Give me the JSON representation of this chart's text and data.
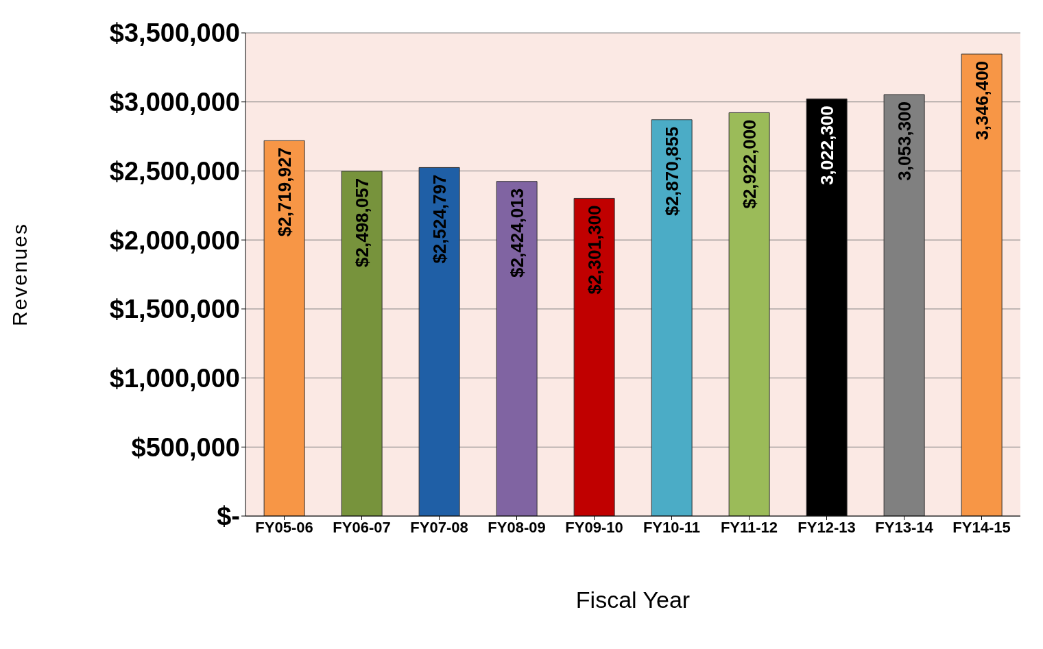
{
  "chart_data": {
    "type": "bar",
    "xlabel": "Fiscal Year",
    "ylabel": "Revenues",
    "categories": [
      "FY05-06",
      "FY06-07",
      "FY07-08",
      "FY08-09",
      "FY09-10",
      "FY10-11",
      "FY11-12",
      "FY12-13",
      "FY13-14",
      "FY14-15"
    ],
    "values": [
      2719927,
      2498057,
      2524797,
      2424013,
      2301300,
      2870855,
      2922000,
      3022300,
      3053300,
      3346400
    ],
    "value_labels": [
      "$2,719,927",
      "$2,498,057",
      "$2,524,797",
      "$2,424,013",
      "$2,301,300",
      "$2,870,855",
      "$2,922,000",
      "3,022,300",
      "3,053,300",
      "3,346,400"
    ],
    "colors": [
      "#f79646",
      "#77933c",
      "#1f5fa6",
      "#8064a2",
      "#c00000",
      "#4bacc6",
      "#9bbb59",
      "#000000",
      "#808080",
      "#f79646"
    ],
    "ylim": [
      0,
      3500000
    ],
    "yticks": [
      {
        "value": 0,
        "label": "$-"
      },
      {
        "value": 500000,
        "label": "$500,000"
      },
      {
        "value": 1000000,
        "label": "$1,000,000"
      },
      {
        "value": 1500000,
        "label": "$1,500,000"
      },
      {
        "value": 2000000,
        "label": "$2,000,000"
      },
      {
        "value": 2500000,
        "label": "$2,500,000"
      },
      {
        "value": 3000000,
        "label": "$3,000,000"
      },
      {
        "value": 3500000,
        "label": "$3,500,000"
      }
    ],
    "grid": "y",
    "legend": false
  }
}
